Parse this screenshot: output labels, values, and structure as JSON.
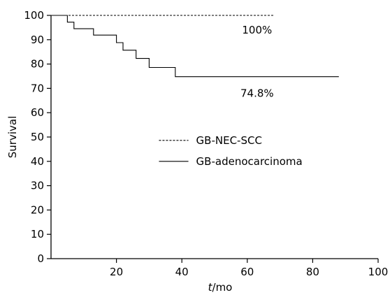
{
  "chart_data": {
    "type": "line",
    "title": "",
    "xlabel_italic": "t",
    "xlabel_rest": "/mo",
    "ylabel": "Survival",
    "xlim": [
      0,
      100
    ],
    "ylim": [
      0,
      100
    ],
    "xticks": [
      20,
      40,
      60,
      80,
      100
    ],
    "yticks": [
      0,
      10,
      20,
      30,
      40,
      50,
      60,
      70,
      80,
      90,
      100
    ],
    "xtick_labels": [
      "20",
      "40",
      "60",
      "80",
      "100"
    ],
    "ytick_labels": [
      "0",
      "10",
      "20",
      "30",
      "40",
      "50",
      "60",
      "70",
      "80",
      "90",
      "100"
    ],
    "grid": false,
    "legend_position": "center-right",
    "series": [
      {
        "name": "GB-NEC-SCC",
        "style": "dashed",
        "color": "#000000",
        "points": [
          [
            0,
            100
          ],
          [
            68,
            100
          ]
        ]
      },
      {
        "name": "GB-adenocarcinoma",
        "style": "solid",
        "color": "#000000",
        "points": [
          [
            0,
            100
          ],
          [
            5,
            100
          ],
          [
            5,
            97.2
          ],
          [
            7,
            97.2
          ],
          [
            7,
            94.5
          ],
          [
            13,
            94.5
          ],
          [
            13,
            91.9
          ],
          [
            20,
            91.9
          ],
          [
            20,
            88.8
          ],
          [
            22,
            88.8
          ],
          [
            22,
            85.7
          ],
          [
            26,
            85.7
          ],
          [
            26,
            82.3
          ],
          [
            30,
            82.3
          ],
          [
            30,
            78.6
          ],
          [
            38,
            78.6
          ],
          [
            38,
            74.8
          ],
          [
            88,
            74.8
          ]
        ]
      }
    ],
    "annotations": [
      {
        "text": "100%",
        "x": 63,
        "y": 94
      },
      {
        "text": "74.8%",
        "x": 63,
        "y": 68
      }
    ]
  }
}
